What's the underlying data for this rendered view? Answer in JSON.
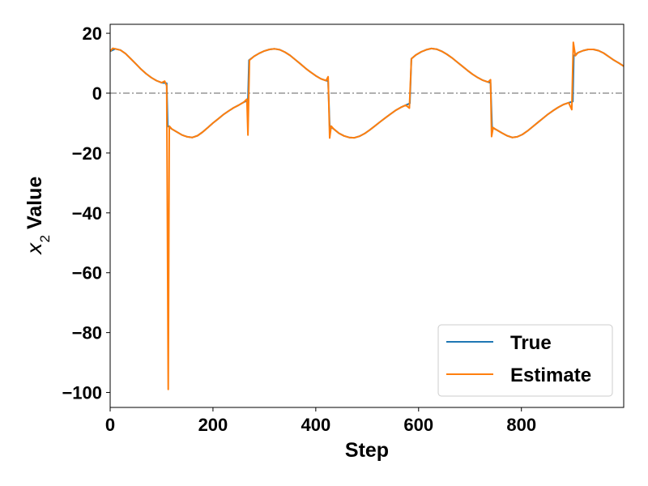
{
  "chart_data": {
    "type": "line",
    "xlabel": "Step",
    "ylabel_main": "x",
    "ylabel_sub": "2",
    "ylabel_rest": " Value",
    "xlim": [
      0,
      999
    ],
    "ylim": [
      -105,
      23
    ],
    "xticks": [
      0,
      200,
      400,
      600,
      800
    ],
    "yticks": [
      20,
      0,
      -20,
      -40,
      -60,
      -80,
      -100
    ],
    "ytick_labels": [
      "20",
      "0",
      "−20",
      "−40",
      "−60",
      "−80",
      "−100"
    ],
    "reference_line": {
      "y": 0,
      "style": "dash-dot",
      "color": "#808080"
    },
    "grid": false,
    "legend_position": "lower-right",
    "series": [
      {
        "name": "True",
        "color": "#1f77b4",
        "points": [
          [
            0,
            14
          ],
          [
            10,
            14.8
          ],
          [
            20,
            14.4
          ],
          [
            30,
            13.2
          ],
          [
            40,
            11.5
          ],
          [
            50,
            9.8
          ],
          [
            60,
            8.0
          ],
          [
            70,
            6.5
          ],
          [
            80,
            5.2
          ],
          [
            90,
            4.2
          ],
          [
            100,
            3.5
          ],
          [
            110,
            3.3
          ],
          [
            112,
            -11
          ],
          [
            120,
            -12
          ],
          [
            130,
            -13
          ],
          [
            140,
            -14
          ],
          [
            150,
            -14.6
          ],
          [
            160,
            -14.8
          ],
          [
            170,
            -14.2
          ],
          [
            180,
            -13
          ],
          [
            190,
            -11.5
          ],
          [
            200,
            -10
          ],
          [
            210,
            -8.6
          ],
          [
            220,
            -7.2
          ],
          [
            230,
            -6
          ],
          [
            240,
            -4.9
          ],
          [
            250,
            -4
          ],
          [
            260,
            -3
          ],
          [
            268,
            -2.5
          ],
          [
            270,
            11
          ],
          [
            280,
            12.3
          ],
          [
            290,
            13.3
          ],
          [
            300,
            14.1
          ],
          [
            310,
            14.6
          ],
          [
            320,
            14.8
          ],
          [
            330,
            14.5
          ],
          [
            340,
            13.7
          ],
          [
            350,
            12.6
          ],
          [
            360,
            11.2
          ],
          [
            370,
            9.8
          ],
          [
            380,
            8.3
          ],
          [
            390,
            7
          ],
          [
            400,
            5.8
          ],
          [
            410,
            4.8
          ],
          [
            420,
            4.2
          ],
          [
            424,
            4
          ],
          [
            427,
            -11
          ],
          [
            435,
            -12
          ],
          [
            445,
            -13.4
          ],
          [
            455,
            -14.3
          ],
          [
            465,
            -14.8
          ],
          [
            475,
            -14.9
          ],
          [
            485,
            -14.4
          ],
          [
            495,
            -13.5
          ],
          [
            505,
            -12.3
          ],
          [
            515,
            -11
          ],
          [
            525,
            -9.6
          ],
          [
            535,
            -8.3
          ],
          [
            545,
            -7
          ],
          [
            555,
            -5.8
          ],
          [
            565,
            -4.8
          ],
          [
            575,
            -4
          ],
          [
            583,
            -3.4
          ],
          [
            586,
            11.5
          ],
          [
            595,
            12.8
          ],
          [
            605,
            13.8
          ],
          [
            615,
            14.5
          ],
          [
            625,
            14.9
          ],
          [
            635,
            14.7
          ],
          [
            645,
            14
          ],
          [
            655,
            13
          ],
          [
            665,
            11.8
          ],
          [
            675,
            10.4
          ],
          [
            685,
            9
          ],
          [
            695,
            7.6
          ],
          [
            705,
            6.3
          ],
          [
            715,
            5.2
          ],
          [
            725,
            4.3
          ],
          [
            735,
            3.7
          ],
          [
            740,
            3.5
          ],
          [
            743,
            -11.5
          ],
          [
            752,
            -12.3
          ],
          [
            762,
            -13.3
          ],
          [
            772,
            -14.2
          ],
          [
            782,
            -14.8
          ],
          [
            792,
            -14.6
          ],
          [
            802,
            -13.8
          ],
          [
            812,
            -12.6
          ],
          [
            822,
            -11.2
          ],
          [
            832,
            -9.8
          ],
          [
            842,
            -8.4
          ],
          [
            852,
            -7
          ],
          [
            862,
            -5.8
          ],
          [
            872,
            -4.7
          ],
          [
            882,
            -3.8
          ],
          [
            892,
            -3.2
          ],
          [
            900,
            -2.8
          ],
          [
            902,
            12.5
          ],
          [
            910,
            13.5
          ],
          [
            920,
            14.2
          ],
          [
            930,
            14.6
          ],
          [
            940,
            14.6
          ],
          [
            950,
            14.2
          ],
          [
            960,
            13.4
          ],
          [
            970,
            12.2
          ],
          [
            980,
            11
          ],
          [
            990,
            10
          ],
          [
            999,
            9
          ]
        ]
      },
      {
        "name": "Estimate",
        "color": "#ff7f0e",
        "points": [
          [
            0,
            14
          ],
          [
            5,
            15
          ],
          [
            10,
            14.8
          ],
          [
            20,
            14.4
          ],
          [
            30,
            13.2
          ],
          [
            40,
            11.5
          ],
          [
            50,
            9.8
          ],
          [
            60,
            8.0
          ],
          [
            70,
            6.5
          ],
          [
            80,
            5.2
          ],
          [
            90,
            4.2
          ],
          [
            100,
            3.5
          ],
          [
            106,
            4
          ],
          [
            110,
            2.5
          ],
          [
            113,
            -99
          ],
          [
            115,
            -11
          ],
          [
            120,
            -12
          ],
          [
            130,
            -13
          ],
          [
            140,
            -14
          ],
          [
            150,
            -14.6
          ],
          [
            160,
            -14.8
          ],
          [
            170,
            -14.2
          ],
          [
            180,
            -13
          ],
          [
            190,
            -11.5
          ],
          [
            200,
            -10
          ],
          [
            210,
            -8.6
          ],
          [
            220,
            -7.2
          ],
          [
            230,
            -6
          ],
          [
            240,
            -4.9
          ],
          [
            250,
            -4
          ],
          [
            260,
            -3
          ],
          [
            266,
            -2
          ],
          [
            268,
            -14
          ],
          [
            271,
            11
          ],
          [
            280,
            12.3
          ],
          [
            290,
            13.3
          ],
          [
            300,
            14.1
          ],
          [
            310,
            14.6
          ],
          [
            320,
            14.8
          ],
          [
            330,
            14.5
          ],
          [
            340,
            13.7
          ],
          [
            350,
            12.6
          ],
          [
            360,
            11.2
          ],
          [
            370,
            9.8
          ],
          [
            380,
            8.3
          ],
          [
            390,
            7
          ],
          [
            400,
            5.8
          ],
          [
            410,
            4.8
          ],
          [
            420,
            4.2
          ],
          [
            424,
            5.5
          ],
          [
            427,
            -15
          ],
          [
            430,
            -11
          ],
          [
            435,
            -12
          ],
          [
            445,
            -13.4
          ],
          [
            455,
            -14.3
          ],
          [
            465,
            -14.8
          ],
          [
            475,
            -14.9
          ],
          [
            485,
            -14.4
          ],
          [
            495,
            -13.5
          ],
          [
            505,
            -12.3
          ],
          [
            515,
            -11
          ],
          [
            525,
            -9.6
          ],
          [
            535,
            -8.3
          ],
          [
            545,
            -7
          ],
          [
            555,
            -5.8
          ],
          [
            565,
            -4.8
          ],
          [
            575,
            -4
          ],
          [
            582,
            -5
          ],
          [
            586,
            11.5
          ],
          [
            595,
            12.8
          ],
          [
            605,
            13.8
          ],
          [
            615,
            14.5
          ],
          [
            625,
            14.9
          ],
          [
            635,
            14.7
          ],
          [
            645,
            14
          ],
          [
            655,
            13
          ],
          [
            665,
            11.8
          ],
          [
            675,
            10.4
          ],
          [
            685,
            9
          ],
          [
            695,
            7.6
          ],
          [
            705,
            6.3
          ],
          [
            715,
            5.2
          ],
          [
            725,
            4.3
          ],
          [
            735,
            3.7
          ],
          [
            740,
            4.5
          ],
          [
            742,
            -14.5
          ],
          [
            745,
            -11.5
          ],
          [
            752,
            -12.3
          ],
          [
            762,
            -13.3
          ],
          [
            772,
            -14.2
          ],
          [
            782,
            -14.8
          ],
          [
            792,
            -14.6
          ],
          [
            802,
            -13.8
          ],
          [
            812,
            -12.6
          ],
          [
            822,
            -11.2
          ],
          [
            832,
            -9.8
          ],
          [
            842,
            -8.4
          ],
          [
            852,
            -7
          ],
          [
            862,
            -5.8
          ],
          [
            872,
            -4.7
          ],
          [
            882,
            -3.8
          ],
          [
            892,
            -3.2
          ],
          [
            898,
            -5.5
          ],
          [
            901,
            17
          ],
          [
            905,
            12.5
          ],
          [
            910,
            13.5
          ],
          [
            920,
            14.2
          ],
          [
            930,
            14.6
          ],
          [
            940,
            14.6
          ],
          [
            950,
            14.2
          ],
          [
            960,
            13.4
          ],
          [
            970,
            12.2
          ],
          [
            980,
            11
          ],
          [
            990,
            10
          ],
          [
            999,
            9
          ]
        ]
      }
    ]
  }
}
